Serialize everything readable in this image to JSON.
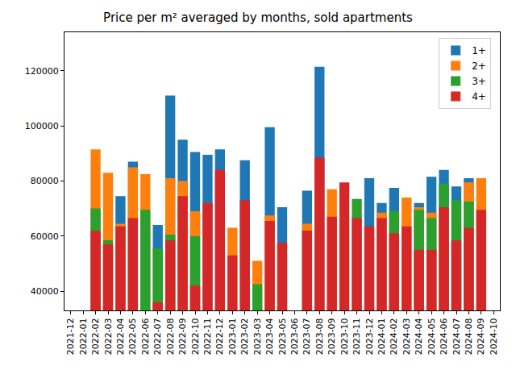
{
  "chart_data": {
    "type": "bar",
    "title": "Price per m² averaged by months, sold apartments",
    "categories": [
      "2021-12",
      "2022-01",
      "2022-02",
      "2022-03",
      "2022-04",
      "2022-05",
      "2022-06",
      "2022-07",
      "2022-08",
      "2022-09",
      "2022-10",
      "2022-11",
      "2022-12",
      "2023-01",
      "2023-02",
      "2023-03",
      "2023-04",
      "2023-05",
      "2023-06",
      "2023-07",
      "2023-08",
      "2023-09",
      "2023-10",
      "2023-11",
      "2023-12",
      "2024-01",
      "2024-02",
      "2024-03",
      "2024-04",
      "2024-05",
      "2024-06",
      "2024-07",
      "2024-08",
      "2024-09",
      "2024-10"
    ],
    "series": [
      {
        "name": "1+",
        "color": "#1f77b4",
        "values": [
          null,
          null,
          null,
          null,
          74500,
          87000,
          null,
          64000,
          111000,
          95000,
          90500,
          89500,
          91500,
          null,
          87500,
          null,
          99500,
          70500,
          null,
          76500,
          121500,
          null,
          null,
          null,
          81000,
          72000,
          77500,
          null,
          72000,
          81500,
          84000,
          78000,
          81000,
          null,
          null
        ]
      },
      {
        "name": "2+",
        "color": "#ff7f0e",
        "values": [
          null,
          null,
          91500,
          83000,
          64500,
          85000,
          82500,
          null,
          81000,
          80000,
          69000,
          null,
          null,
          63000,
          null,
          51000,
          67500,
          null,
          null,
          64500,
          null,
          77000,
          null,
          null,
          null,
          68500,
          null,
          74000,
          70500,
          68500,
          null,
          null,
          79500,
          81000,
          null
        ]
      },
      {
        "name": "3+",
        "color": "#2ca02c",
        "values": [
          null,
          null,
          70000,
          58500,
          null,
          null,
          69500,
          55500,
          60500,
          null,
          60000,
          null,
          null,
          null,
          null,
          42500,
          null,
          null,
          null,
          null,
          null,
          null,
          null,
          73500,
          null,
          null,
          69000,
          null,
          69500,
          66500,
          79000,
          73000,
          72500,
          null,
          null
        ]
      },
      {
        "name": "4+",
        "color": "#d62728",
        "values": [
          null,
          null,
          62000,
          57000,
          63500,
          66500,
          null,
          36000,
          58500,
          74500,
          42000,
          72000,
          84000,
          53000,
          73000,
          null,
          65500,
          57500,
          null,
          62000,
          88500,
          67000,
          79500,
          66500,
          63500,
          66500,
          61000,
          63500,
          55000,
          55000,
          70500,
          58500,
          63000,
          69500,
          null
        ]
      }
    ],
    "stacked": false,
    "ylim": [
      33000,
      134000
    ],
    "yticks": [
      40000,
      60000,
      80000,
      100000,
      120000
    ],
    "grid": false,
    "legend": "upper right"
  }
}
